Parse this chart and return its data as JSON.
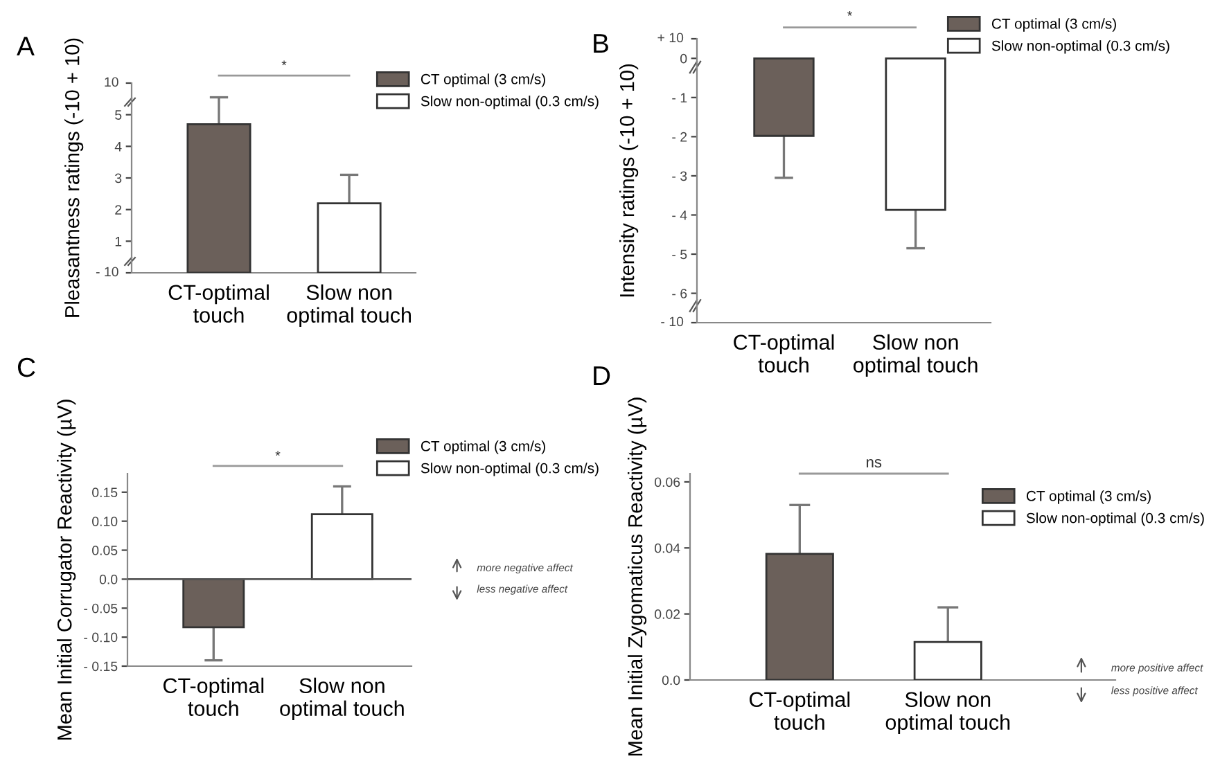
{
  "chart_data": [
    {
      "type": "bar",
      "ylabel": "Pleasantness ratings (-10 + 10)",
      "categories": [
        "CT-optimal\ntouch",
        "Slow non\noptimal touch"
      ],
      "series": [
        {
          "name": "CT optimal (3 cm/s)",
          "color": "#6b605a",
          "values": [
            4.7,
            null
          ],
          "errors": [
            [
              4.7,
              5.55
            ],
            null
          ]
        },
        {
          "name": "Slow non-optimal (0.3 cm/s)",
          "color": "#ffffff",
          "values": [
            null,
            2.2
          ],
          "errors": [
            null,
            [
              2.2,
              3.1
            ]
          ]
        }
      ],
      "ylim": [
        0,
        6
      ],
      "yticks": [
        {
          "value": 0,
          "label": null
        },
        1,
        2,
        3,
        4,
        5,
        {
          "value": 6,
          "label": null
        }
      ],
      "annotations": [
        "A",
        "*",
        "- 10",
        "10"
      ],
      "legend": "top right"
    },
    {
      "type": "bar",
      "ylabel": "Intensity ratings (-10 + 10)",
      "categories": [
        "CT-optimal\ntouch",
        "Slow non\noptimal touch"
      ],
      "series": [
        {
          "name": "CT optimal (3 cm/s)",
          "color": "#6b605a",
          "values": [
            -1.98,
            null
          ],
          "errors": [
            [
              -3.05,
              -1.98
            ],
            null
          ]
        },
        {
          "name": "Slow non-optimal (0.3 cm/s)",
          "color": "#ffffff",
          "values": [
            null,
            -3.87
          ],
          "errors": [
            null,
            [
              -4.85,
              -3.87
            ]
          ]
        }
      ],
      "ylim": [
        -6.75,
        0.5
      ],
      "yticks": [
        {
          "value": -6.75,
          "label": null
        },
        {
          "value": -6,
          "label": "- 6"
        },
        {
          "value": -5,
          "label": "- 5"
        },
        {
          "value": -4,
          "label": "- 4"
        },
        {
          "value": -3,
          "label": "- 3"
        },
        {
          "value": -2,
          "label": "- 2"
        },
        {
          "value": -1,
          "label": "- 1"
        },
        0,
        {
          "value": 0.5,
          "label": null
        }
      ],
      "annotations": [
        "B",
        "*",
        "- 10",
        "+ 10"
      ],
      "legend": "top right"
    },
    {
      "type": "bar",
      "ylabel": "Mean Initial Corrugator Reactivity (µV)",
      "categories": [
        "CT-optimal\ntouch",
        "Slow non\noptimal touch"
      ],
      "series": [
        {
          "name": "CT optimal (3 cm/s)",
          "color": "#6b605a",
          "values": [
            -0.083,
            null
          ],
          "errors": [
            [
              -0.14,
              -0.083
            ],
            null
          ]
        },
        {
          "name": "Slow non-optimal (0.3 cm/s)",
          "color": "#ffffff",
          "values": [
            null,
            0.112
          ],
          "errors": [
            null,
            [
              0.112,
              0.16
            ]
          ]
        }
      ],
      "ylim": [
        -0.15,
        0.182
      ],
      "yticks": [
        {
          "value": -0.15,
          "label": "- 0.15"
        },
        {
          "value": -0.1,
          "label": "- 0.10"
        },
        {
          "value": -0.05,
          "label": "- 0.05"
        },
        {
          "value": 0,
          "label": "0.0"
        },
        0.05,
        {
          "value": 0.1,
          "label": "0.10"
        },
        0.15
      ],
      "ref_lines": [
        {
          "axis": "y",
          "value": 0,
          "color": "#555555"
        }
      ],
      "annotations": [
        "C",
        "*",
        "more negative affect",
        "less negative affect"
      ],
      "legend": "top right"
    },
    {
      "type": "bar",
      "ylabel": "Mean Initial Zygomaticus Reactivity (µV)",
      "categories": [
        "CT-optimal\ntouch",
        "Slow non\noptimal touch"
      ],
      "series": [
        {
          "name": "CT optimal (3 cm/s)",
          "color": "#6b605a",
          "values": [
            0.0382,
            null
          ],
          "errors": [
            [
              0.0382,
              0.053
            ],
            null
          ]
        },
        {
          "name": "Slow non-optimal (0.3 cm/s)",
          "color": "#ffffff",
          "values": [
            null,
            0.0115
          ],
          "errors": [
            null,
            [
              0.0115,
              0.022
            ]
          ]
        }
      ],
      "ylim": [
        0,
        0.0625
      ],
      "yticks": [
        {
          "value": 0,
          "label": "0.0"
        },
        0.02,
        0.04,
        0.06
      ],
      "annotations": [
        "D",
        "ns",
        "more positive affect",
        "less positive affect"
      ],
      "legend": "top right"
    }
  ]
}
